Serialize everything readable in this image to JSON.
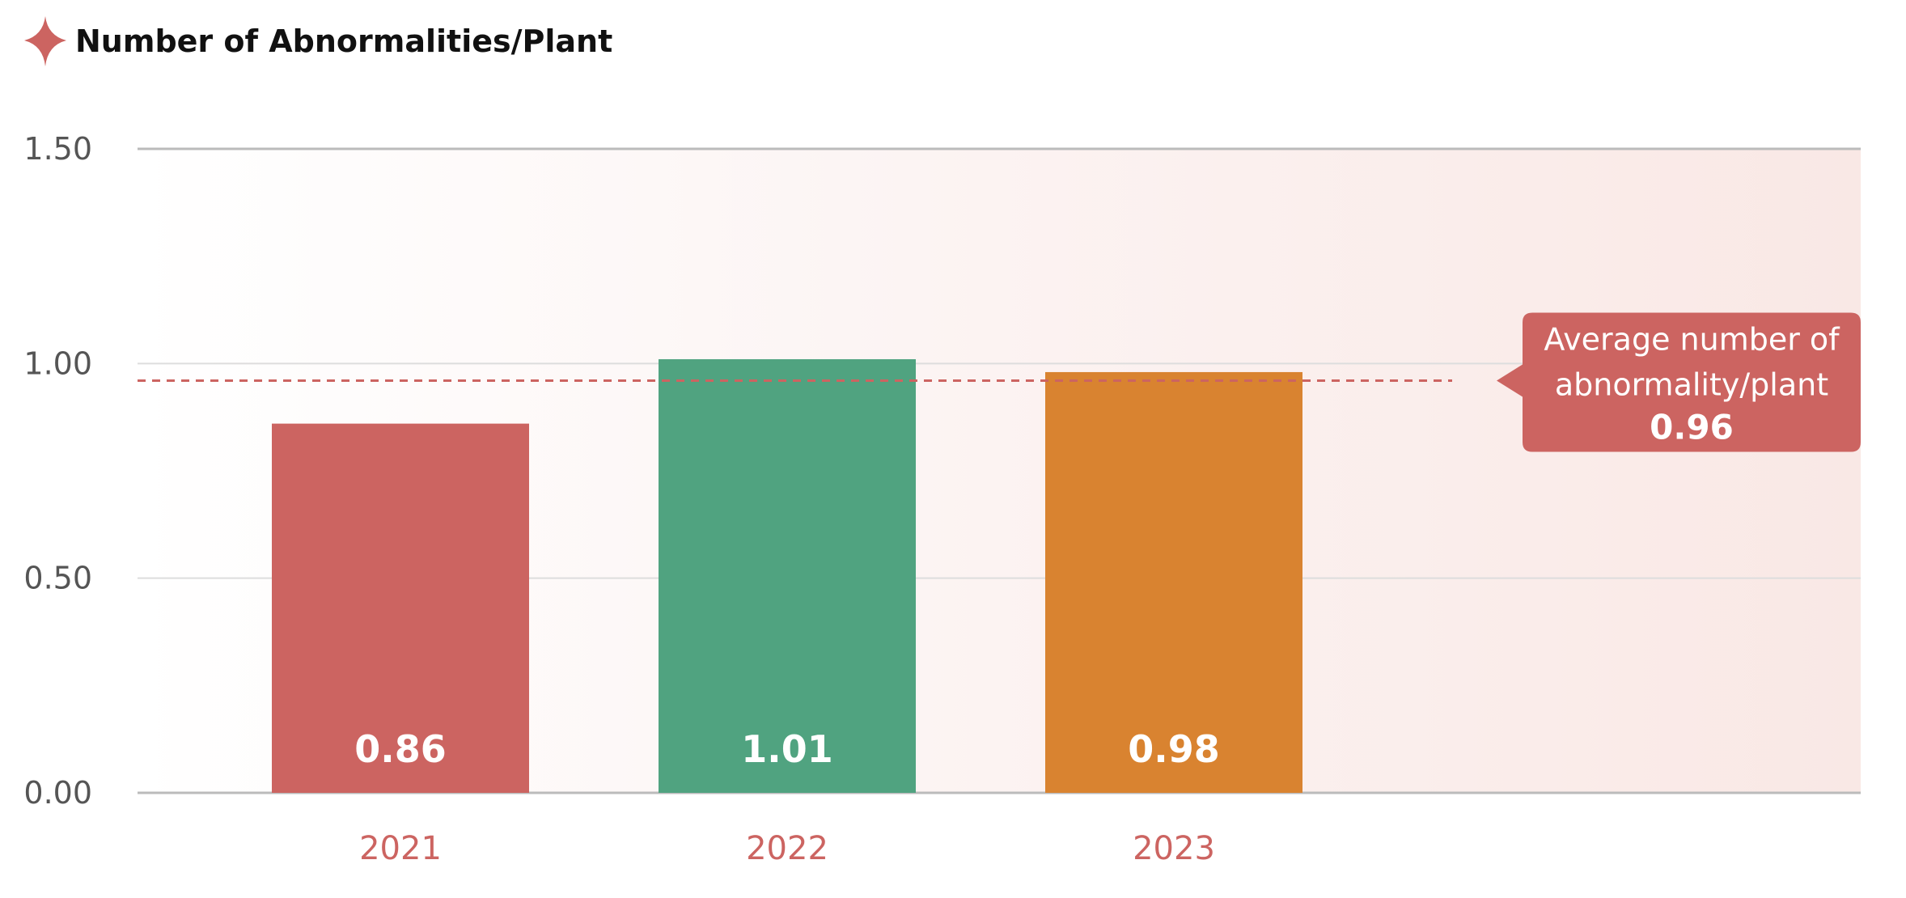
{
  "chart_data": {
    "type": "bar",
    "title": "Number of Abnormalities/Plant",
    "categories": [
      "2021",
      "2022",
      "2023"
    ],
    "values": [
      0.86,
      1.01,
      0.98
    ],
    "value_labels": [
      "0.86",
      "1.01",
      "0.98"
    ],
    "bar_colors": [
      "#cc6461",
      "#50a380",
      "#d98330"
    ],
    "ylim": [
      0,
      1.5
    ],
    "yticks": [
      0,
      0.5,
      1.0,
      1.5
    ],
    "ytick_labels": [
      "0.00",
      "0.50",
      "1.00",
      "1.50"
    ],
    "xlabel": "",
    "ylabel": "",
    "grid": true,
    "average": {
      "value": 0.96,
      "label_line1": "Average number of",
      "label_line2": "abnormality/plant",
      "value_label": "0.96"
    },
    "colors": {
      "accent": "#cc6461",
      "axis": "#bbbbbb",
      "grid": "#dddddd",
      "tick_text": "#555555",
      "background_tint": "#fbeeec"
    },
    "icons": {
      "title": "four-point-star-icon"
    }
  }
}
